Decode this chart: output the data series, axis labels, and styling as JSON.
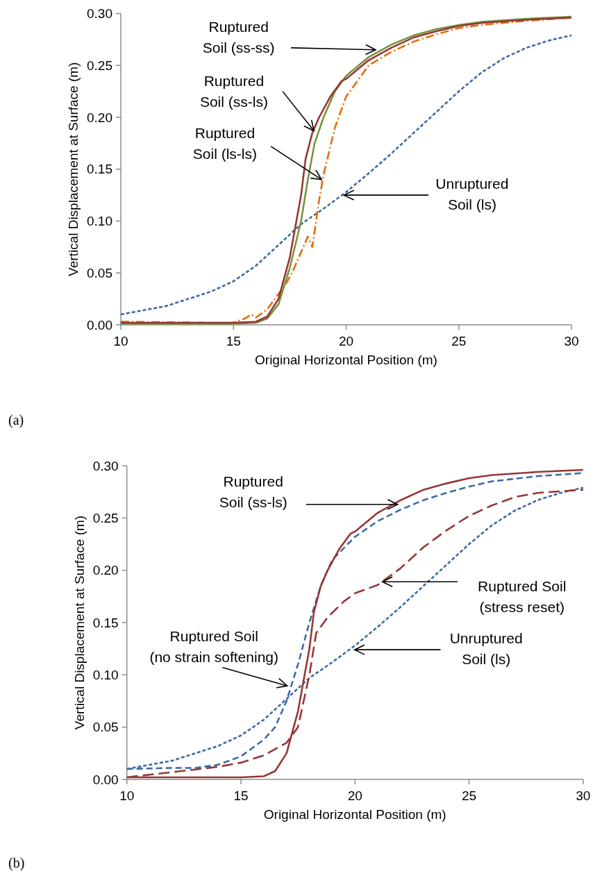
{
  "chart_data": [
    {
      "type": "line",
      "xlabel": "Original Horizontal Position (m)",
      "ylabel": "Vertical Displacement at Surface (m)",
      "xlim": [
        10,
        30
      ],
      "xticks": [
        10,
        15,
        20,
        25,
        30
      ],
      "ylim": [
        0,
        0.3
      ],
      "yticks": [
        {
          "value": 0,
          "label": "0.00"
        },
        {
          "value": 0.05,
          "label": "0.05"
        },
        {
          "value": 0.1,
          "label": "0.10"
        },
        {
          "value": 0.15,
          "label": "0.15"
        },
        {
          "value": 0.2,
          "label": "0.20"
        },
        {
          "value": 0.25,
          "label": "0.25"
        },
        {
          "value": 0.3,
          "label": "0.30"
        }
      ],
      "grid": false,
      "legend": false,
      "annotations": [
        "(a)",
        {
          "text": "Ruptured Soil (ss-ss)",
          "x": 21.31,
          "y": 0.265
        },
        {
          "text": "Ruptured Soil (ss-ls)",
          "x": 18.57,
          "y": 0.187
        },
        {
          "text": "Ruptured Soil (ls-ls)",
          "x": 18.91,
          "y": 0.14
        },
        {
          "text": "Unruptured Soil (ls)",
          "x": 19.9,
          "y": 0.125
        }
      ],
      "series": [
        {
          "color": "#3c6aa5",
          "line_style": "dotted",
          "x": [
            10,
            12,
            14,
            15,
            16,
            17,
            18,
            19,
            20,
            21,
            22,
            23,
            24,
            25,
            26,
            27,
            28,
            29,
            30
          ],
          "values": [
            0.01,
            0.018,
            0.032,
            0.042,
            0.057,
            0.077,
            0.097,
            0.112,
            0.128,
            0.146,
            0.165,
            0.185,
            0.205,
            0.225,
            0.243,
            0.257,
            0.267,
            0.274,
            0.279
          ]
        },
        {
          "color": "#e46c0a",
          "line_style": "dashdot",
          "x": [
            10,
            14,
            15,
            15.5,
            15.8,
            16,
            16.5,
            17,
            17.2,
            17.6,
            18,
            18.3,
            18.5,
            18.8,
            19,
            19.5,
            20,
            21,
            22,
            23,
            24,
            25,
            26,
            28,
            30
          ],
          "values": [
            0.003,
            0.002,
            0.002,
            0.006,
            0.01,
            0.007,
            0.015,
            0.03,
            0.035,
            0.05,
            0.07,
            0.085,
            0.075,
            0.12,
            0.145,
            0.19,
            0.22,
            0.25,
            0.263,
            0.273,
            0.28,
            0.286,
            0.289,
            0.293,
            0.296
          ]
        },
        {
          "color": "#77933c",
          "line_style": "solid",
          "x": [
            10,
            15,
            16,
            16.5,
            17,
            17.5,
            18,
            18.3,
            18.6,
            19,
            19.5,
            20,
            21,
            22,
            23,
            24,
            25,
            26,
            28,
            30
          ],
          "values": [
            0.001,
            0.001,
            0.002,
            0.006,
            0.02,
            0.055,
            0.1,
            0.14,
            0.175,
            0.2,
            0.225,
            0.24,
            0.258,
            0.27,
            0.279,
            0.285,
            0.289,
            0.292,
            0.295,
            0.297
          ]
        },
        {
          "color": "#953735",
          "line_style": "solid",
          "x": [
            10,
            15,
            16,
            16.5,
            17,
            17.5,
            18,
            18.2,
            18.5,
            18.8,
            19.3,
            19.8,
            20,
            21,
            22,
            23,
            24,
            25,
            26,
            28,
            30
          ],
          "values": [
            0.002,
            0.002,
            0.003,
            0.008,
            0.025,
            0.065,
            0.125,
            0.16,
            0.185,
            0.2,
            0.22,
            0.235,
            0.237,
            0.255,
            0.267,
            0.277,
            0.283,
            0.288,
            0.291,
            0.294,
            0.296
          ]
        }
      ]
    },
    {
      "type": "line",
      "xlabel": "Original Horizontal Position (m)",
      "ylabel": "Vertical Displacement at Surface (m)",
      "xlim": [
        10,
        30
      ],
      "xticks": [
        10,
        15,
        20,
        25,
        30
      ],
      "ylim": [
        0,
        0.3
      ],
      "yticks": [
        {
          "value": 0,
          "label": "0.00"
        },
        {
          "value": 0.05,
          "label": "0.05"
        },
        {
          "value": 0.1,
          "label": "0.10"
        },
        {
          "value": 0.15,
          "label": "0.15"
        },
        {
          "value": 0.2,
          "label": "0.20"
        },
        {
          "value": 0.25,
          "label": "0.25"
        },
        {
          "value": 0.3,
          "label": "0.30"
        }
      ],
      "grid": false,
      "legend": false,
      "annotations": [
        "(b)",
        {
          "text": "Ruptured Soil (ss-ls)",
          "x": 21.87,
          "y": 0.263
        },
        "Ruptured Soil (stress reset)",
        {
          "text": "Ruptured Soil (no strain softening)",
          "x": 17.03,
          "y": 0.0895
        },
        {
          "text": "Unruptured Soil (ls)",
          "x": 19.98,
          "y": 0.124
        }
      ],
      "series": [
        {
          "color": "#3c6aa5",
          "line_style": "dotted",
          "x": [
            10,
            12,
            14,
            15,
            16,
            17,
            18,
            19,
            20,
            21,
            22,
            23,
            24,
            25,
            26,
            27,
            28,
            29,
            30
          ],
          "values": [
            0.01,
            0.018,
            0.032,
            0.042,
            0.057,
            0.077,
            0.097,
            0.112,
            0.128,
            0.146,
            0.165,
            0.185,
            0.205,
            0.225,
            0.243,
            0.257,
            0.267,
            0.274,
            0.279
          ]
        },
        {
          "color": "#3c6aa5",
          "line_style": "dashed",
          "x": [
            10,
            12,
            13,
            14,
            15,
            16,
            16.5,
            17,
            17.5,
            18,
            18.5,
            19,
            20,
            21,
            22,
            23,
            24,
            25,
            26,
            28,
            30
          ],
          "values": [
            0.01,
            0.011,
            0.011,
            0.014,
            0.022,
            0.038,
            0.05,
            0.075,
            0.11,
            0.15,
            0.185,
            0.21,
            0.232,
            0.247,
            0.258,
            0.267,
            0.274,
            0.28,
            0.285,
            0.29,
            0.293
          ]
        },
        {
          "color": "#953735",
          "line_style": "longdash",
          "x": [
            10,
            12,
            14,
            15,
            16,
            17,
            17.5,
            18,
            18.3,
            18.8,
            19.5,
            20,
            21,
            22,
            23,
            24,
            25,
            26,
            27,
            28,
            30
          ],
          "values": [
            0.002,
            0.007,
            0.012,
            0.016,
            0.023,
            0.035,
            0.05,
            0.1,
            0.14,
            0.155,
            0.17,
            0.178,
            0.186,
            0.202,
            0.222,
            0.238,
            0.252,
            0.262,
            0.27,
            0.274,
            0.277
          ]
        },
        {
          "color": "#953735",
          "line_style": "solid",
          "x": [
            10,
            15,
            16,
            16.5,
            17,
            17.5,
            18,
            18.2,
            18.5,
            18.8,
            19.3,
            19.8,
            20,
            21,
            22,
            23,
            24,
            25,
            26,
            28,
            30
          ],
          "values": [
            0.002,
            0.002,
            0.003,
            0.008,
            0.025,
            0.065,
            0.125,
            0.16,
            0.185,
            0.2,
            0.22,
            0.235,
            0.237,
            0.255,
            0.267,
            0.277,
            0.283,
            0.288,
            0.291,
            0.294,
            0.296
          ]
        }
      ]
    }
  ]
}
